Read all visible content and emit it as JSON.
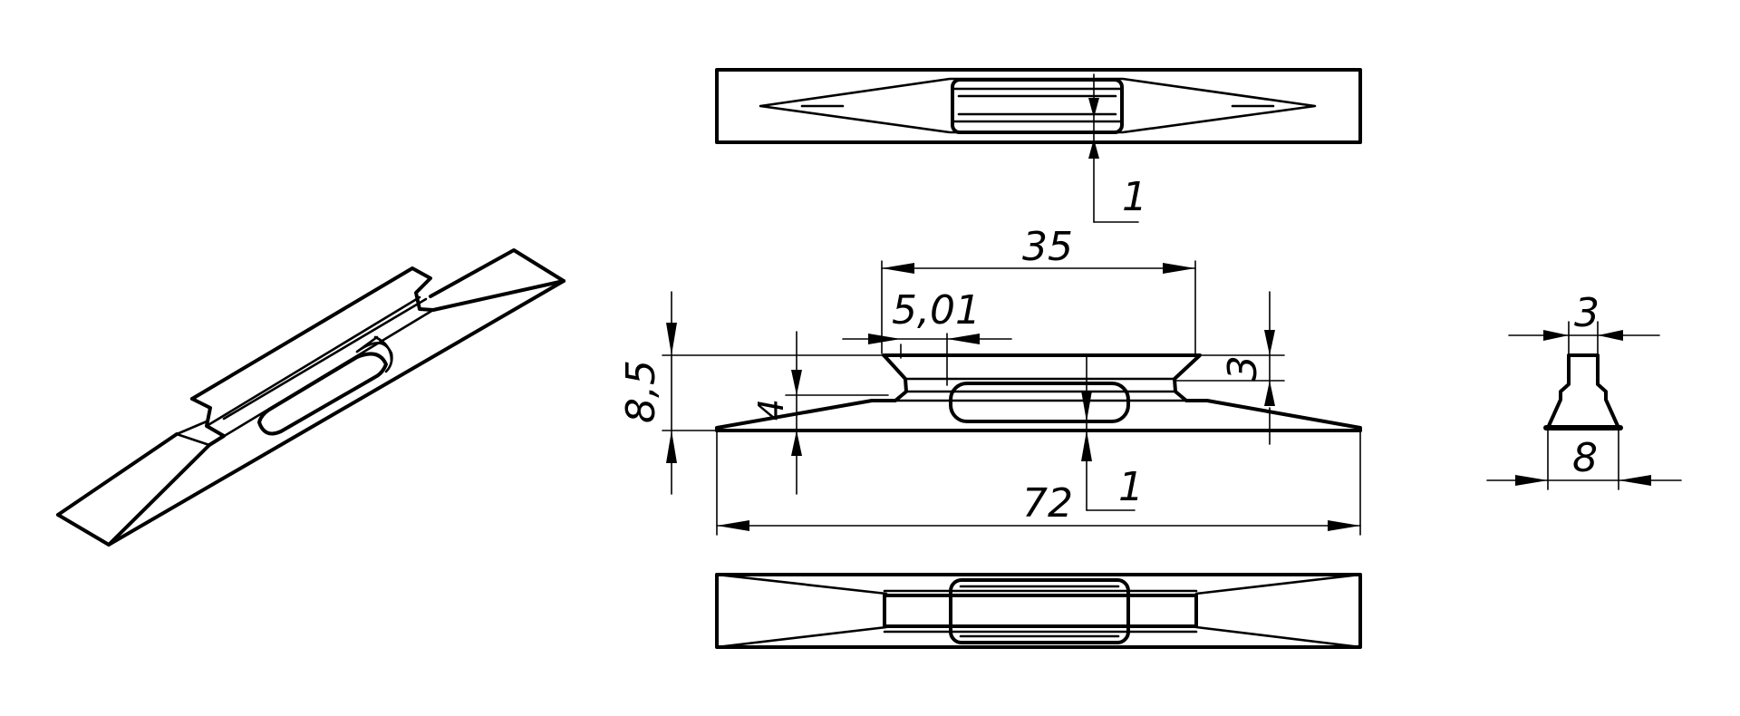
{
  "dimensions": {
    "top_view_thickness": "1",
    "handle_length": "35",
    "end_offset": "5,01",
    "total_height": "8,5",
    "blade_thickness": "4",
    "right_step": "3",
    "side_view_thickness": "1",
    "total_length": "72",
    "end_top_width": "3",
    "end_base_width": "8"
  },
  "colors": {
    "line": "#000000",
    "background": "#ffffff"
  }
}
